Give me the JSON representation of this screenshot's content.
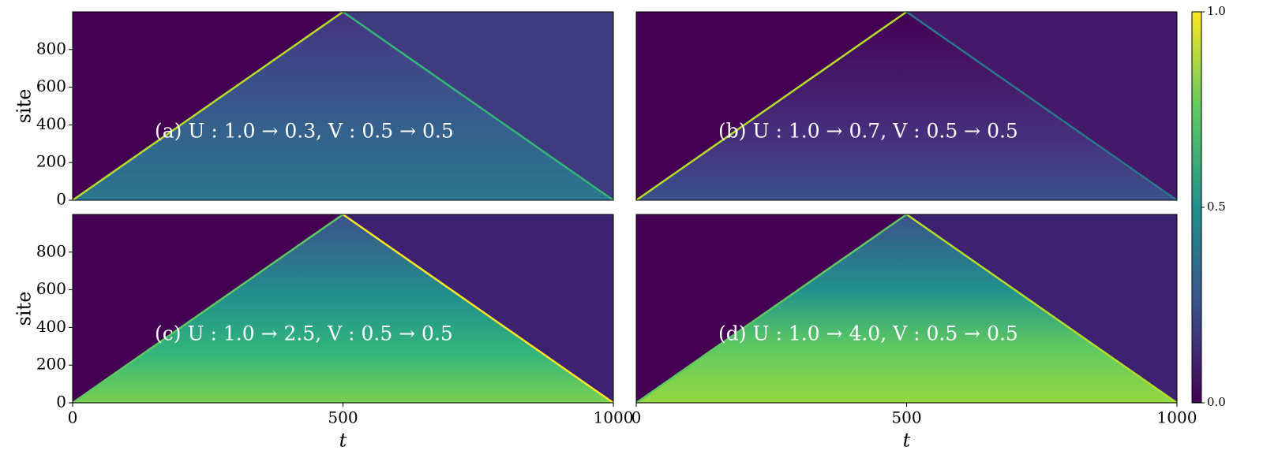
{
  "chart_data": [
    {
      "type": "heatmap",
      "title": "(a) U : 1.0 → 0.3,    V : 0.5 → 0.5",
      "ylabel": "site",
      "xlim": [
        0,
        1000
      ],
      "ylim": [
        0,
        1000
      ],
      "yticks": [
        0,
        200,
        400,
        600,
        800
      ]
    },
    {
      "type": "heatmap",
      "title": "(b) U : 1.0 → 0.7,    V : 0.5 → 0.5",
      "xlim": [
        0,
        1000
      ],
      "ylim": [
        0,
        1000
      ]
    },
    {
      "type": "heatmap",
      "title": "(c) U : 1.0 → 2.5,    V : 0.5 → 0.5",
      "ylabel": "site",
      "xlabel": "t",
      "xlim": [
        0,
        1000
      ],
      "ylim": [
        0,
        1000
      ],
      "xticks": [
        0,
        500,
        1000
      ],
      "yticks": [
        0,
        200,
        400,
        600,
        800
      ]
    },
    {
      "type": "heatmap",
      "title": "(d) U : 1.0 → 4.0,    V : 0.5 → 0.5",
      "xlabel": "t",
      "xlim": [
        0,
        1000
      ],
      "ylim": [
        0,
        1000
      ],
      "xticks": [
        0,
        500,
        1000
      ]
    }
  ],
  "colorbar": {
    "colormap": "viridis",
    "lim": [
      0,
      1
    ],
    "ticks": [
      {
        "value": 0,
        "label": "0.0"
      },
      0.5,
      {
        "value": 1,
        "label": "1.0"
      }
    ]
  }
}
